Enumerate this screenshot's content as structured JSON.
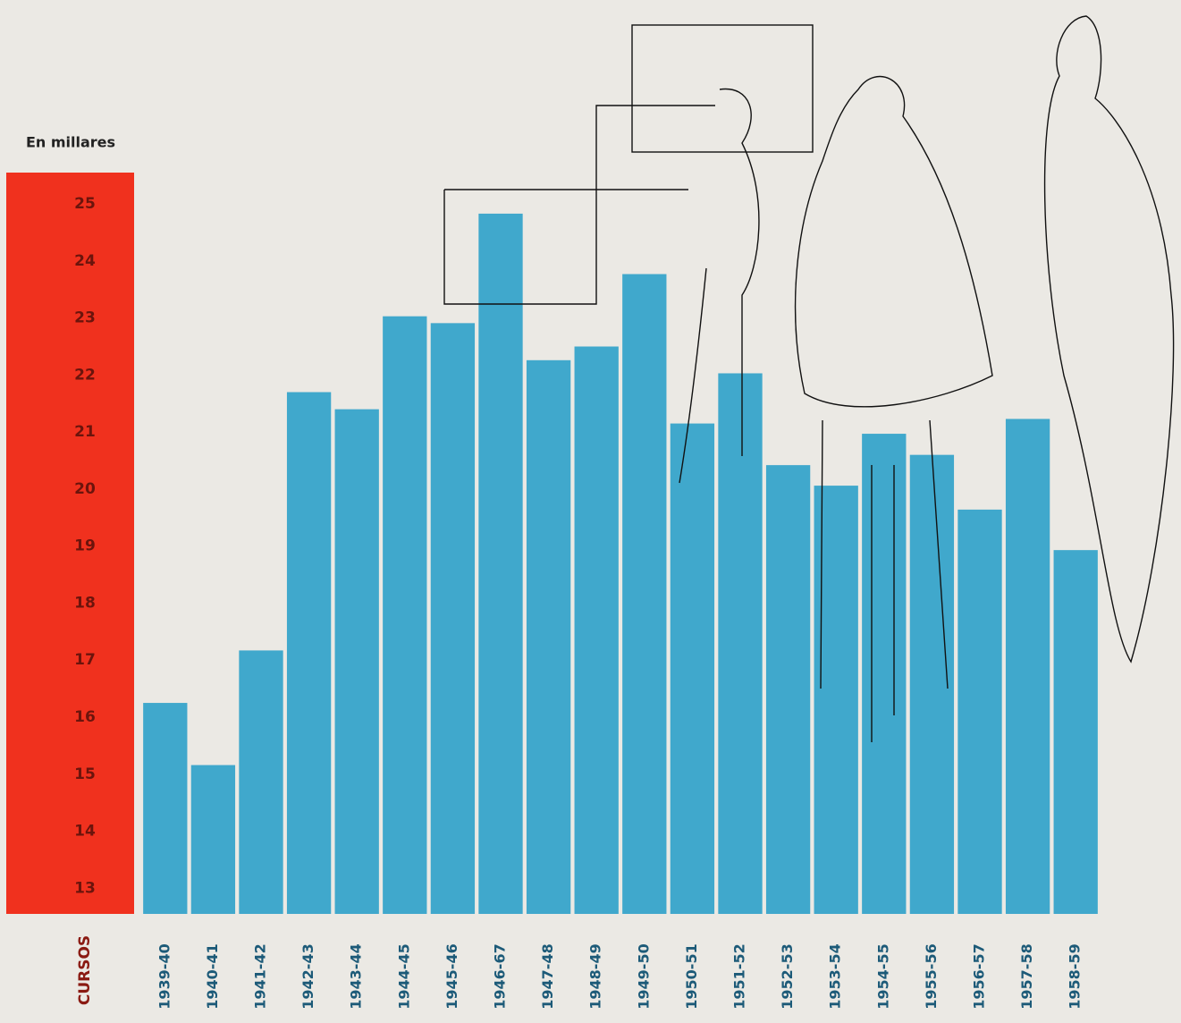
{
  "chart_data": {
    "type": "bar",
    "ylabel": "En millares",
    "xlabel": "CURSOS",
    "categories": [
      "1939-40",
      "1940-41",
      "1941-42",
      "1942-43",
      "1943-44",
      "1944-45",
      "1945-46",
      "1946-67",
      "1947-48",
      "1948-49",
      "1949-50",
      "1950-51",
      "1951-52",
      "1952-53",
      "1953-54",
      "1954-55",
      "1955-56",
      "1956-57",
      "1957-58",
      "1958-59"
    ],
    "values": [
      16.25,
      15.16,
      17.17,
      21.7,
      21.4,
      23.03,
      22.91,
      24.83,
      22.26,
      22.5,
      23.77,
      21.15,
      22.03,
      20.42,
      20.06,
      20.97,
      20.6,
      19.64,
      21.23,
      18.93
    ],
    "color": "#40a8cc",
    "axis_color": "#f0311e",
    "ylim": [
      12.55,
      25.55
    ],
    "yticks": [
      13,
      14,
      15,
      16,
      17,
      18,
      19,
      20,
      21,
      22,
      23,
      24,
      25
    ],
    "grid": false
  }
}
